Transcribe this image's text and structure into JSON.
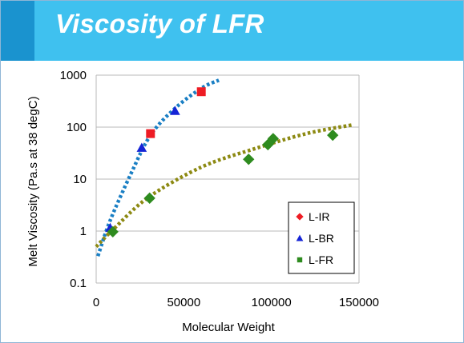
{
  "slide": {
    "title": "Viscosity of LFR"
  },
  "colors": {
    "header_bar": "#3fc1ef",
    "header_accent": "#1a93cf",
    "L-IR": "#ee1c24",
    "L-BR": "#1524d6",
    "L-FR": "#2e8b1f",
    "fit_steep": "#1a7fc4",
    "fit_shallow": "#8d8a13"
  },
  "chart_data": {
    "type": "scatter",
    "xlabel": "Molecular Weight",
    "ylabel": "Melt Viscosity (Pa.s at 38 degC)",
    "xlim": [
      0,
      150000
    ],
    "ylim": [
      0.1,
      1000
    ],
    "y_scale": "log",
    "x_ticks": [
      0,
      50000,
      100000,
      150000
    ],
    "x_tick_labels": [
      "0",
      "50000",
      "100000",
      "150000"
    ],
    "y_ticks": [
      0.1,
      1,
      10,
      100,
      1000
    ],
    "y_tick_labels": [
      "0.1",
      "1",
      "10",
      "100",
      "1000"
    ],
    "grid": "horizontal",
    "legend_position": "lower-right",
    "series": [
      {
        "name": "L-IR",
        "marker": "square",
        "points": [
          [
            31000,
            75
          ],
          [
            60000,
            480
          ]
        ]
      },
      {
        "name": "L-BR",
        "marker": "triangle",
        "points": [
          [
            8000,
            1.15
          ],
          [
            26000,
            40
          ],
          [
            45000,
            205
          ]
        ]
      },
      {
        "name": "L-FR",
        "marker": "diamond",
        "points": [
          [
            9500,
            0.97
          ],
          [
            30500,
            4.3
          ],
          [
            87000,
            24
          ],
          [
            98000,
            46
          ],
          [
            101000,
            60
          ],
          [
            135000,
            70
          ]
        ]
      }
    ],
    "fit_lines": [
      {
        "style": "dotted",
        "points": [
          [
            1000,
            0.33
          ],
          [
            8000,
            1.6
          ],
          [
            20000,
            13
          ],
          [
            31000,
            70
          ],
          [
            45000,
            230
          ],
          [
            60000,
            560
          ],
          [
            70000,
            800
          ]
        ]
      },
      {
        "style": "dotted",
        "points": [
          [
            0,
            0.5
          ],
          [
            10000,
            1.1
          ],
          [
            30000,
            4.5
          ],
          [
            60000,
            17
          ],
          [
            90000,
            38
          ],
          [
            120000,
            75
          ],
          [
            146000,
            110
          ]
        ]
      }
    ]
  }
}
